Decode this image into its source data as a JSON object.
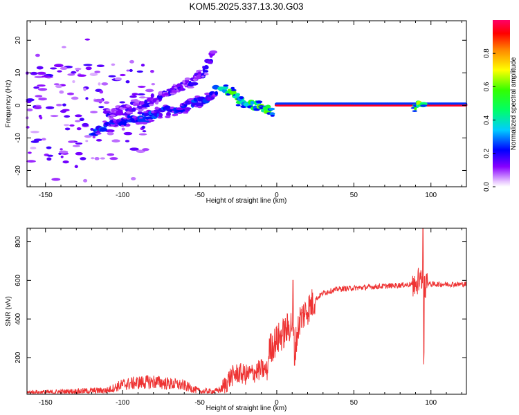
{
  "figure": {
    "title": "KOM5.2025.337.13.30.G03"
  },
  "chart_data": [
    {
      "type": "heatmap",
      "id": "spectrogram",
      "title": "KOM5.2025.337.13.30.G03",
      "xlabel": "Height of straight line (km)",
      "ylabel": "Frequency (Hz)",
      "xlim": [
        -162,
        123
      ],
      "ylim": [
        -25,
        26
      ],
      "xticks": [
        -150,
        -100,
        -50,
        0,
        50,
        100
      ],
      "yticks": [
        -20,
        -10,
        0,
        10,
        20
      ],
      "colorbar": {
        "label": "Normalized spectral amplitude",
        "range": [
          0,
          1
        ],
        "ticks": [
          0.0,
          0.2,
          0.4,
          0.6,
          0.8
        ]
      },
      "features": [
        {
          "name": "scattered low-amplitude noise",
          "x_range": [
            -162,
            -95
          ],
          "freq_range": [
            -25,
            26
          ],
          "amplitude": 0.1
        },
        {
          "name": "rising arc (main)",
          "points": [
            [
              -110,
              -3
            ],
            [
              -100,
              -1
            ],
            [
              -90,
              0
            ],
            [
              -80,
              2
            ],
            [
              -70,
              4
            ],
            [
              -60,
              6
            ],
            [
              -50,
              9
            ],
            [
              -45,
              12
            ],
            [
              -40,
              17
            ]
          ],
          "amplitude": 0.15
        },
        {
          "name": "rising arc (secondary)",
          "points": [
            [
              -120,
              -8
            ],
            [
              -100,
              -5
            ],
            [
              -80,
              -3
            ],
            [
              -65,
              -1
            ],
            [
              -55,
              0
            ],
            [
              -45,
              2
            ],
            [
              -38,
              5
            ]
          ],
          "amplitude": 0.2
        },
        {
          "name": "descending transition",
          "points": [
            [
              -36,
              5
            ],
            [
              -30,
              4
            ],
            [
              -25,
              2
            ],
            [
              -20,
              1
            ],
            [
              -15,
              0
            ],
            [
              -8,
              -1
            ],
            [
              -2,
              -2
            ]
          ],
          "amplitude": 0.45
        },
        {
          "name": "strong carrier line",
          "points": [
            [
              0,
              0
            ],
            [
              25,
              0
            ],
            [
              60,
              0
            ],
            [
              123,
              0
            ]
          ],
          "amplitude": 1.0
        },
        {
          "name": "patch near 93 km",
          "points": [
            [
              88,
              0
            ],
            [
              96,
              0
            ]
          ],
          "amplitude": 0.5
        }
      ]
    },
    {
      "type": "line",
      "id": "snr",
      "title": "",
      "xlabel": "Height of straight line (km)",
      "ylabel": "SNR (v/v)",
      "xlim": [
        -162,
        123
      ],
      "ylim": [
        10,
        870
      ],
      "xticks": [
        -150,
        -100,
        -50,
        0,
        50,
        100
      ],
      "yticks": [
        200,
        400,
        600,
        800
      ],
      "series": [
        {
          "name": "SNR",
          "color": "#ee3333",
          "x": [
            -162,
            -150,
            -140,
            -130,
            -120,
            -110,
            -105,
            -100,
            -90,
            -80,
            -70,
            -60,
            -55,
            -50,
            -40,
            -35,
            -30,
            -25,
            -20,
            -15,
            -10,
            -6,
            -5,
            0,
            5,
            10,
            12,
            15,
            20,
            25,
            30,
            40,
            50,
            60,
            70,
            80,
            88,
            92,
            94,
            95,
            96,
            98,
            100,
            110,
            123
          ],
          "y": [
            20,
            20,
            22,
            25,
            28,
            30,
            45,
            60,
            70,
            75,
            65,
            55,
            40,
            25,
            25,
            40,
            100,
            120,
            110,
            120,
            140,
            130,
            240,
            290,
            330,
            380,
            260,
            400,
            450,
            500,
            535,
            555,
            560,
            565,
            570,
            575,
            580,
            590,
            600,
            590,
            575,
            585,
            580,
            580,
            580
          ]
        }
      ],
      "annotations": [
        {
          "type": "spike",
          "x": 94.8,
          "y": 870
        },
        {
          "type": "dip",
          "x": 95.4,
          "y": 165
        },
        {
          "type": "dip",
          "x": 11.5,
          "y": 160
        },
        {
          "type": "spike",
          "x": 10.5,
          "y": 600
        }
      ]
    }
  ]
}
